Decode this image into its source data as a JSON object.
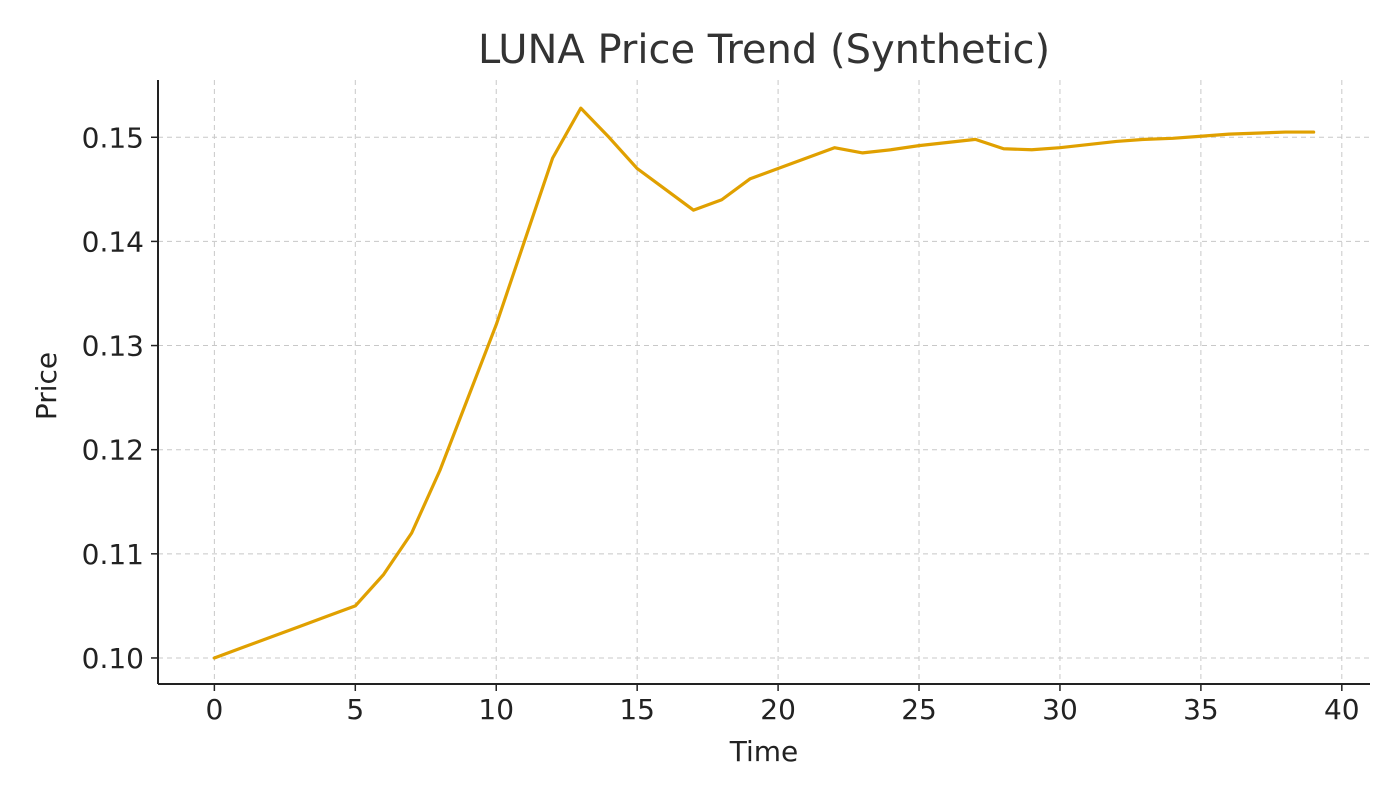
{
  "chart_data": {
    "type": "line",
    "title": "LUNA Price Trend (Synthetic)",
    "xlabel": "Time",
    "ylabel": "Price",
    "xlim": [
      -2,
      41
    ],
    "ylim": [
      0.0975,
      0.1555
    ],
    "x_ticks": [
      0,
      5,
      10,
      15,
      20,
      25,
      30,
      35,
      40
    ],
    "y_ticks": [
      0.1,
      0.11,
      0.12,
      0.13,
      0.14,
      0.15
    ],
    "x_tick_labels": [
      "0",
      "5",
      "10",
      "15",
      "20",
      "25",
      "30",
      "35",
      "40"
    ],
    "y_tick_labels": [
      "0.10",
      "0.11",
      "0.12",
      "0.13",
      "0.14",
      "0.15"
    ],
    "grid": true,
    "legend": "none",
    "series": [
      {
        "color": "#E0A000",
        "x": [
          0,
          1,
          2,
          3,
          4,
          5,
          6,
          7,
          8,
          9,
          10,
          11,
          12,
          13,
          14,
          15,
          16,
          17,
          18,
          19,
          20,
          21,
          22,
          23,
          24,
          25,
          26,
          27,
          28,
          29,
          30,
          31,
          32,
          33,
          34,
          35,
          36,
          37,
          38,
          39
        ],
        "y": [
          0.1,
          0.101,
          0.102,
          0.103,
          0.104,
          0.105,
          0.108,
          0.112,
          0.118,
          0.125,
          0.132,
          0.14,
          0.148,
          0.1528,
          0.15,
          0.147,
          0.145,
          0.143,
          0.144,
          0.146,
          0.147,
          0.148,
          0.149,
          0.1485,
          0.1488,
          0.1492,
          0.1495,
          0.1498,
          0.1489,
          0.1488,
          0.149,
          0.1493,
          0.1496,
          0.1498,
          0.1499,
          0.1501,
          0.1503,
          0.1504,
          0.1505,
          0.1505
        ]
      }
    ]
  }
}
